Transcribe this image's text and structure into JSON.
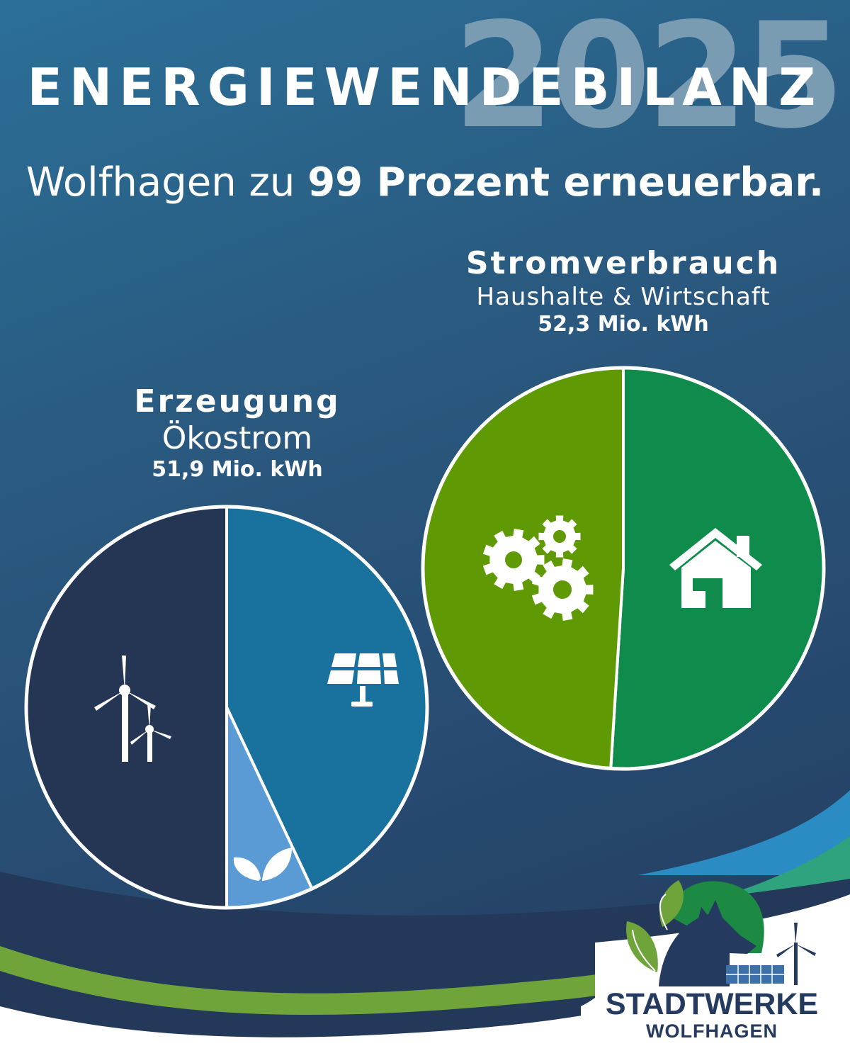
{
  "year": "2025",
  "title": "ENERGIEWENDEBILANZ",
  "headline": {
    "prefix": "Wolfhagen zu ",
    "highlight": "99 Prozent erneuerbar."
  },
  "colors": {
    "wind": "#243654",
    "solar": "#19729e",
    "biomass": "#5b9bd5",
    "industry": "#5f9a04",
    "households": "#0f8c4c",
    "logo_navy": "#243a5e",
    "logo_green": "#1c8a43",
    "accent_lime": "#7ab648"
  },
  "chart_data": [
    {
      "type": "pie",
      "title": "Erzeugung",
      "subtitle": "Ökostrom",
      "total": "51,9 Mio. kWh",
      "slices": [
        {
          "icon": "solar-panel-icon",
          "value": 43
        },
        {
          "icon": "leaf-icon",
          "value": 7
        },
        {
          "icon": "wind-turbine-icon",
          "value": 50
        }
      ]
    },
    {
      "type": "pie",
      "title": "Stromverbrauch",
      "subtitle": "Haushalte & Wirtschaft",
      "total": "52,3 Mio. kWh",
      "slices": [
        {
          "icon": "house-icon",
          "value": 51
        },
        {
          "icon": "gears-icon",
          "value": 49
        }
      ]
    }
  ],
  "logo": {
    "name": "STADTWERKE",
    "city": "WOLFHAGEN"
  }
}
